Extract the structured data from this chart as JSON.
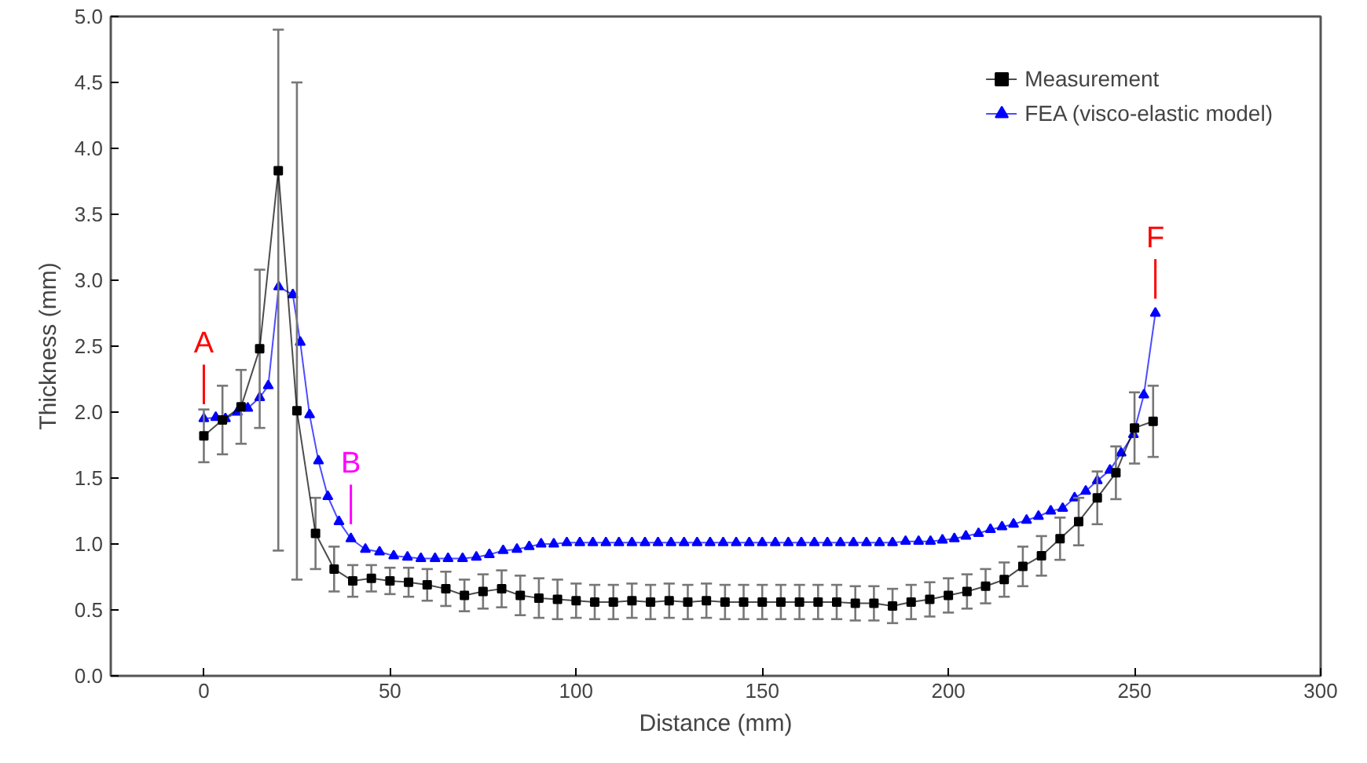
{
  "chart_data": {
    "type": "line",
    "xlabel": "Distance (mm)",
    "ylabel": "Thickness (mm)",
    "xlim": [
      -25,
      300
    ],
    "ylim": [
      0,
      5
    ],
    "xticks": [
      0,
      50,
      100,
      150,
      200,
      250,
      300
    ],
    "yticks": [
      {
        "value": 0,
        "label": "0.0"
      },
      {
        "value": 0.5,
        "label": "0.5"
      },
      {
        "value": 1,
        "label": "1.0"
      },
      {
        "value": 1.5,
        "label": "1.5"
      },
      {
        "value": 2,
        "label": "2.0"
      },
      {
        "value": 2.5,
        "label": "2.5"
      },
      {
        "value": 3,
        "label": "3.0"
      },
      {
        "value": 3.5,
        "label": "3.5"
      },
      {
        "value": 4,
        "label": "4.0"
      },
      {
        "value": 4.5,
        "label": "4.5"
      },
      {
        "value": 5,
        "label": "5.0"
      }
    ],
    "grid": false,
    "legend": "top right",
    "line_style": "solid",
    "series": [
      {
        "name": "Measurement",
        "color": "#000000",
        "marker": "square",
        "x": [
          0,
          5,
          10,
          15,
          20,
          25,
          30,
          35,
          40,
          45,
          50,
          55,
          60,
          65,
          70,
          75,
          80,
          85,
          90,
          95,
          100,
          105,
          110,
          115,
          120,
          125,
          130,
          135,
          140,
          145,
          150,
          155,
          160,
          165,
          170,
          175,
          180,
          185,
          190,
          195,
          200,
          205,
          210,
          215,
          220,
          225,
          230,
          235,
          240,
          245,
          250,
          255
        ],
        "values": [
          1.82,
          1.94,
          2.04,
          2.48,
          3.83,
          2.01,
          1.08,
          0.81,
          0.72,
          0.74,
          0.72,
          0.71,
          0.69,
          0.66,
          0.61,
          0.64,
          0.66,
          0.61,
          0.59,
          0.58,
          0.57,
          0.56,
          0.56,
          0.57,
          0.56,
          0.57,
          0.56,
          0.57,
          0.56,
          0.56,
          0.56,
          0.56,
          0.56,
          0.56,
          0.56,
          0.55,
          0.55,
          0.53,
          0.56,
          0.58,
          0.61,
          0.64,
          0.68,
          0.73,
          0.83,
          0.91,
          1.04,
          1.17,
          1.35,
          1.54,
          1.88,
          1.93
        ],
        "errors": [
          0.2,
          0.26,
          0.28,
          0.6,
          [
            0.95,
            4.9
          ],
          [
            0.73,
            4.5
          ],
          0.27,
          0.17,
          0.12,
          0.1,
          0.1,
          0.11,
          0.12,
          0.13,
          0.12,
          0.13,
          0.14,
          0.15,
          0.15,
          0.15,
          0.13,
          0.13,
          0.13,
          0.13,
          0.13,
          0.13,
          0.13,
          0.13,
          0.13,
          0.13,
          0.13,
          0.13,
          0.13,
          0.13,
          0.13,
          0.13,
          0.13,
          0.13,
          0.13,
          0.13,
          0.13,
          0.13,
          0.13,
          0.13,
          0.15,
          0.15,
          0.16,
          0.18,
          0.2,
          0.2,
          0.27,
          0.27
        ]
      },
      {
        "name": "FEA (visco-elastic model)",
        "color": "#0000ff",
        "marker": "triangle",
        "x": [
          0,
          3.2,
          5.8,
          9,
          11.8,
          15,
          17.3,
          20.1,
          23.9,
          25.9,
          28.4,
          30.8,
          33.3,
          36.3,
          39.5,
          43.4,
          47.2,
          51,
          54.7,
          58.3,
          62.1,
          65.6,
          69.5,
          73.2,
          76.7,
          80.4,
          84.1,
          87.4,
          90.6,
          94,
          97.5,
          101,
          104.5,
          108,
          111.5,
          115,
          118.5,
          122,
          125.5,
          129,
          132.5,
          136,
          139.5,
          143,
          146.5,
          150,
          153.5,
          157,
          160.5,
          164,
          167.5,
          171,
          174.5,
          178,
          181.5,
          185,
          188.5,
          192,
          195.2,
          198.4,
          201.6,
          204.7,
          208.1,
          211.3,
          214.4,
          217.5,
          221,
          224.2,
          227.5,
          230.7,
          233.9,
          236.9,
          240,
          243.4,
          246.4,
          249.7,
          252.5,
          255.6
        ],
        "values": [
          1.95,
          1.96,
          1.95,
          2.0,
          2.03,
          2.11,
          2.2,
          2.95,
          2.89,
          2.53,
          1.98,
          1.63,
          1.36,
          1.17,
          1.04,
          0.96,
          0.94,
          0.91,
          0.9,
          0.89,
          0.89,
          0.89,
          0.89,
          0.9,
          0.92,
          0.95,
          0.96,
          0.98,
          1.0,
          1.0,
          1.01,
          1.01,
          1.01,
          1.01,
          1.01,
          1.01,
          1.01,
          1.01,
          1.01,
          1.01,
          1.01,
          1.01,
          1.01,
          1.01,
          1.01,
          1.01,
          1.01,
          1.01,
          1.01,
          1.01,
          1.01,
          1.01,
          1.01,
          1.01,
          1.01,
          1.01,
          1.02,
          1.02,
          1.02,
          1.03,
          1.04,
          1.06,
          1.08,
          1.11,
          1.13,
          1.15,
          1.18,
          1.21,
          1.25,
          1.27,
          1.35,
          1.4,
          1.48,
          1.56,
          1.69,
          1.83,
          2.13,
          2.75
        ]
      }
    ],
    "annotations": [
      {
        "text": "A",
        "x": 0,
        "y": 1.95
      },
      {
        "text": "B",
        "x": 39.5,
        "y": 1.04
      },
      {
        "text": "F",
        "x": 255.6,
        "y": 2.75
      }
    ]
  }
}
